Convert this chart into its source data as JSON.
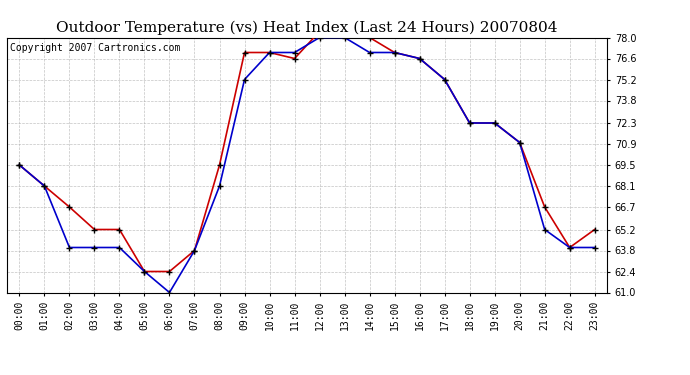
{
  "title": "Outdoor Temperature (vs) Heat Index (Last 24 Hours) 20070804",
  "copyright": "Copyright 2007 Cartronics.com",
  "x_labels": [
    "00:00",
    "01:00",
    "02:00",
    "03:00",
    "04:00",
    "05:00",
    "06:00",
    "07:00",
    "08:00",
    "09:00",
    "10:00",
    "11:00",
    "12:00",
    "13:00",
    "14:00",
    "15:00",
    "16:00",
    "17:00",
    "18:00",
    "19:00",
    "20:00",
    "21:00",
    "22:00",
    "23:00"
  ],
  "temp_data": [
    69.5,
    68.1,
    64.0,
    64.0,
    64.0,
    62.4,
    61.0,
    63.8,
    68.1,
    75.2,
    77.0,
    77.0,
    78.0,
    78.0,
    77.0,
    77.0,
    76.6,
    75.2,
    72.3,
    72.3,
    71.0,
    65.2,
    64.0,
    64.0
  ],
  "heat_index_data": [
    69.5,
    68.1,
    66.7,
    65.2,
    65.2,
    62.4,
    62.4,
    63.8,
    69.5,
    77.0,
    77.0,
    76.6,
    78.4,
    78.4,
    78.0,
    77.0,
    76.6,
    75.2,
    72.3,
    72.3,
    71.0,
    66.7,
    64.0,
    65.2
  ],
  "temp_color": "#0000CC",
  "heat_color": "#CC0000",
  "marker_color": "#000000",
  "bg_color": "#FFFFFF",
  "grid_color": "#AAAAAA",
  "ylim_min": 61.0,
  "ylim_max": 78.0,
  "yticks": [
    61.0,
    62.4,
    63.8,
    65.2,
    66.7,
    68.1,
    69.5,
    70.9,
    72.3,
    73.8,
    75.2,
    76.6,
    78.0
  ],
  "title_fontsize": 11,
  "label_fontsize": 7,
  "copyright_fontsize": 7
}
